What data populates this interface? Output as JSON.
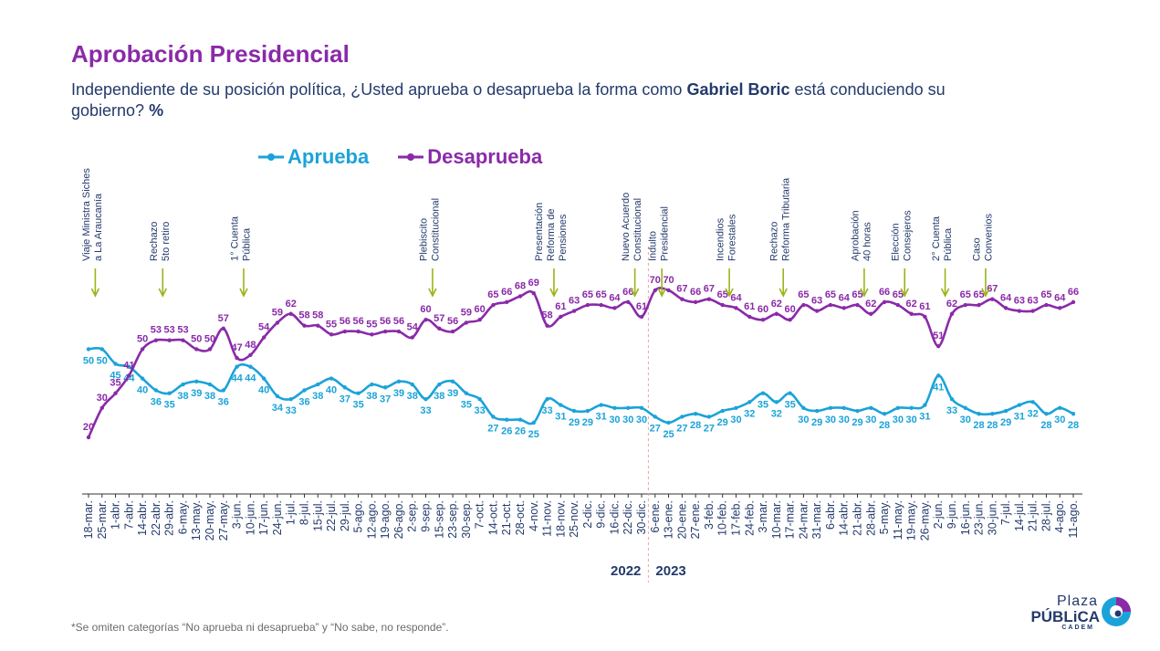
{
  "header": {
    "title": "Aprobación Presidencial",
    "subtitle_pre": "Independiente de su posición política, ¿Usted aprueba o desaprueba la forma como ",
    "subtitle_bold": "Gabriel Boric",
    "subtitle_post": " está conduciendo su gobierno? ",
    "subtitle_pct": "%"
  },
  "footnote": "*Se omiten categorías “No aprueba ni desaprueba” y “No sabe, no responde”.",
  "logo": {
    "line1": "Plaza",
    "line2": "PÚBLiCA",
    "line3": "CADEM"
  },
  "chart_data": {
    "type": "line",
    "x": [
      "18-mar.",
      "25-mar.",
      "1-abr.",
      "7-abr.",
      "14-abr.",
      "22-abr.",
      "29-abr.",
      "6-may.",
      "13-may.",
      "20-may.",
      "27-may.",
      "3-jun.",
      "10-jun.",
      "17-jun.",
      "24-jun.",
      "1-jul.",
      "8-jul.",
      "15-jul.",
      "22-jul.",
      "29-jul.",
      "5-ago.",
      "12-ago.",
      "19-ago.",
      "26-ago.",
      "2-sep.",
      "9-sep.",
      "15-sep.",
      "23-sep.",
      "30-sep.",
      "7-oct.",
      "14-oct.",
      "21-oct.",
      "28-oct.",
      "4-nov.",
      "11-nov.",
      "18-nov.",
      "25-nov.",
      "2-dic.",
      "9-dic.",
      "16-dic.",
      "22-dic.",
      "30-dic.",
      "6-ene.",
      "13-ene.",
      "20-ene.",
      "27-ene.",
      "3-feb.",
      "10-feb.",
      "17-feb.",
      "24-feb.",
      "3-mar.",
      "10-mar.",
      "17-mar.",
      "24-mar.",
      "31-mar.",
      "6-abr.",
      "14-abr.",
      "21-abr.",
      "28-abr.",
      "5-may.",
      "11-may.",
      "19-may.",
      "26-may.",
      "2-jun.",
      "9-jun.",
      "16-jun.",
      "23-jun.",
      "30-jun.",
      "7-jul.",
      "14-jul.",
      "21-jul.",
      "28-jul.",
      "4-ago.",
      "11-ago."
    ],
    "series": [
      {
        "name": "Aprueba",
        "color": "#1ba3d9",
        "values": [
          50,
          50,
          45,
          44,
          40,
          36,
          35,
          38,
          39,
          38,
          36,
          44,
          44,
          40,
          34,
          33,
          36,
          38,
          40,
          37,
          35,
          38,
          37,
          39,
          38,
          33,
          38,
          39,
          35,
          33,
          27,
          26,
          26,
          25,
          33,
          31,
          29,
          29,
          31,
          30,
          30,
          30,
          27,
          25,
          27,
          28,
          27,
          29,
          30,
          32,
          35,
          32,
          35,
          30,
          29,
          30,
          30,
          29,
          30,
          28,
          30,
          30,
          31,
          41,
          33,
          30,
          28,
          28,
          29,
          31,
          32,
          28,
          30,
          28
        ]
      },
      {
        "name": "Desaprueba",
        "color": "#8a2aa8",
        "values": [
          20,
          30,
          35,
          41,
          50,
          53,
          53,
          53,
          50,
          50,
          57,
          47,
          48,
          54,
          59,
          62,
          58,
          58,
          55,
          56,
          56,
          55,
          56,
          56,
          54,
          60,
          57,
          56,
          59,
          60,
          65,
          66,
          68,
          69,
          58,
          61,
          63,
          65,
          65,
          64,
          66,
          61,
          70,
          70,
          67,
          66,
          67,
          65,
          64,
          61,
          60,
          62,
          60,
          65,
          63,
          65,
          64,
          65,
          62,
          66,
          65,
          62,
          61,
          51,
          62,
          65,
          65,
          67,
          64,
          63,
          63,
          65,
          64,
          66
        ]
      }
    ],
    "years": [
      "2022",
      "2023"
    ],
    "year_divider_after": "30-dic.",
    "events": [
      {
        "after": "18-mar.",
        "lines": [
          "Viaje Ministra Siches",
          "a La Araucanía"
        ]
      },
      {
        "after": "22-abr.",
        "lines": [
          "Rechazo",
          "5to retiro"
        ]
      },
      {
        "after": "3-jun.",
        "lines": [
          "1° Cuenta",
          "Pública"
        ]
      },
      {
        "after": "9-sep.",
        "lines": [
          "Plebiscito",
          "Constitucional"
        ]
      },
      {
        "after": "11-nov.",
        "lines": [
          "Presentación",
          "Reforma de",
          "Pensiones"
        ]
      },
      {
        "after": "22-dic.",
        "lines": [
          "Nuevo Acuerdo",
          "Constitucional"
        ]
      },
      {
        "after": "6-ene.",
        "lines": [
          "Indulto",
          "Presidencial"
        ]
      },
      {
        "after": "10-feb.",
        "lines": [
          "Incendios",
          "Forestales"
        ]
      },
      {
        "after": "10-mar.",
        "lines": [
          "Rechazo",
          "Reforma Tributaria"
        ]
      },
      {
        "after": "21-abr.",
        "lines": [
          "Aprobación",
          "40 horas"
        ]
      },
      {
        "after": "11-may.",
        "lines": [
          "Elección",
          "Consejeros"
        ]
      },
      {
        "after": "2-jun.",
        "lines": [
          "2° Cuenta",
          "Pública"
        ]
      },
      {
        "after": "23-jun.",
        "lines": [
          "Caso",
          "Convenios"
        ]
      }
    ],
    "colors": {
      "aprueba": "#1ba3d9",
      "desaprueba": "#8a2aa8",
      "event_arrow": "#9bb31a"
    }
  }
}
